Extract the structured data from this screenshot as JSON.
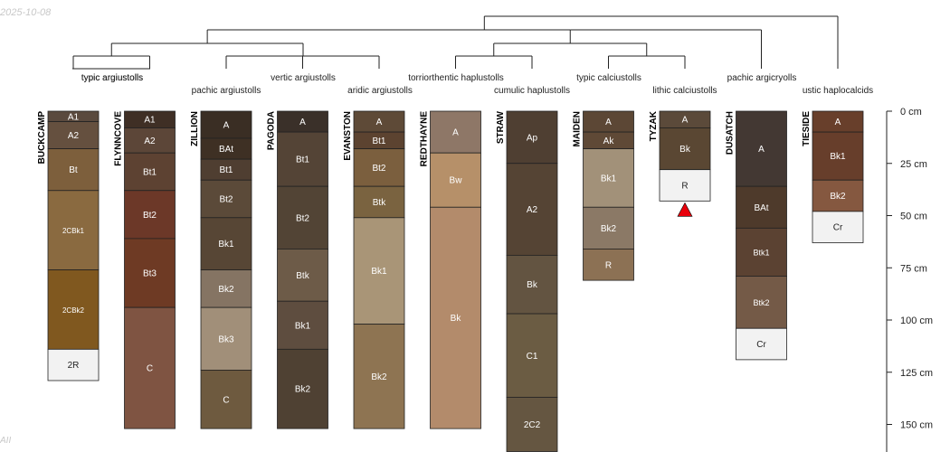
{
  "figure": {
    "date_stamp": "2025-10-08",
    "corner_note": "AII",
    "depth_unit": "cm",
    "depth_max": 160
  },
  "colors": {
    "line": "#222222",
    "label_light": "#ffffff",
    "label_dark": "#222222",
    "marker": "#e8000b"
  },
  "depth_axis": {
    "ticks": [
      {
        "depth": 0,
        "label": "0 cm"
      },
      {
        "depth": 25,
        "label": "25 cm"
      },
      {
        "depth": 50,
        "label": "50 cm"
      },
      {
        "depth": 75,
        "label": "75 cm"
      },
      {
        "depth": 100,
        "label": "100 cm"
      },
      {
        "depth": 125,
        "label": "125 cm"
      },
      {
        "depth": 150,
        "label": "150 cm"
      }
    ]
  },
  "profiles": [
    {
      "name": "BUCKCAMP",
      "taxon": "typic argiustolls",
      "horizons": [
        {
          "label": "A1",
          "top": 0,
          "bottom": 5,
          "color": "#5a4a3e"
        },
        {
          "label": "A2",
          "top": 5,
          "bottom": 18,
          "color": "#65503f"
        },
        {
          "label": "Bt",
          "top": 18,
          "bottom": 38,
          "color": "#7d5f3c"
        },
        {
          "label": "2CBk1",
          "top": 38,
          "bottom": 76,
          "color": "#8a6a40"
        },
        {
          "label": "2CBk2",
          "top": 76,
          "bottom": 114,
          "color": "#80581f"
        },
        {
          "label": "2R",
          "top": 114,
          "bottom": 129,
          "color": "#f2f2f2"
        }
      ]
    },
    {
      "name": "FLYNNCOVE",
      "taxon": "typic argiustolls",
      "horizons": [
        {
          "label": "A1",
          "top": 0,
          "bottom": 8,
          "color": "#3f2f25"
        },
        {
          "label": "A2",
          "top": 8,
          "bottom": 20,
          "color": "#5c4638"
        },
        {
          "label": "Bt1",
          "top": 20,
          "bottom": 38,
          "color": "#5d4232"
        },
        {
          "label": "Bt2",
          "top": 38,
          "bottom": 61,
          "color": "#6c3828"
        },
        {
          "label": "Bt3",
          "top": 61,
          "bottom": 94,
          "color": "#6e3a24"
        },
        {
          "label": "C",
          "top": 94,
          "bottom": 152,
          "color": "#7f5442"
        }
      ]
    },
    {
      "name": "ZILLION",
      "taxon": "pachic argiustolls",
      "horizons": [
        {
          "label": "A",
          "top": 0,
          "bottom": 13,
          "color": "#3a2e24"
        },
        {
          "label": "BAt",
          "top": 13,
          "bottom": 23,
          "color": "#3e3024"
        },
        {
          "label": "Bt1",
          "top": 23,
          "bottom": 33,
          "color": "#4f3e31"
        },
        {
          "label": "Bt2",
          "top": 33,
          "bottom": 51,
          "color": "#5b4a39"
        },
        {
          "label": "Bk1",
          "top": 51,
          "bottom": 76,
          "color": "#574635"
        },
        {
          "label": "Bk2",
          "top": 76,
          "bottom": 94,
          "color": "#857463"
        },
        {
          "label": "Bk3",
          "top": 94,
          "bottom": 124,
          "color": "#a18f79"
        },
        {
          "label": "C",
          "top": 124,
          "bottom": 152,
          "color": "#6e5a3f"
        }
      ]
    },
    {
      "name": "PAGODA",
      "taxon": "vertic argiustolls",
      "horizons": [
        {
          "label": "A",
          "top": 0,
          "bottom": 10,
          "color": "#3a3029"
        },
        {
          "label": "Bt1",
          "top": 10,
          "bottom": 36,
          "color": "#544436"
        },
        {
          "label": "Bt2",
          "top": 36,
          "bottom": 66,
          "color": "#524435"
        },
        {
          "label": "Btk",
          "top": 66,
          "bottom": 91,
          "color": "#6d5b48"
        },
        {
          "label": "Bk1",
          "top": 91,
          "bottom": 114,
          "color": "#5e4d3f"
        },
        {
          "label": "Bk2",
          "top": 114,
          "bottom": 152,
          "color": "#4f4133"
        }
      ]
    },
    {
      "name": "EVANSTON",
      "taxon": "aridic argiustolls",
      "horizons": [
        {
          "label": "A",
          "top": 0,
          "bottom": 10,
          "color": "#5e4a37"
        },
        {
          "label": "Bt1",
          "top": 10,
          "bottom": 18,
          "color": "#5c4330"
        },
        {
          "label": "Bt2",
          "top": 18,
          "bottom": 36,
          "color": "#7b5f3e"
        },
        {
          "label": "Btk",
          "top": 36,
          "bottom": 51,
          "color": "#7a6340"
        },
        {
          "label": "Bk1",
          "top": 51,
          "bottom": 102,
          "color": "#a99577"
        },
        {
          "label": "Bk2",
          "top": 102,
          "bottom": 152,
          "color": "#8e7452"
        }
      ]
    },
    {
      "name": "REDTHAYNE",
      "taxon": "torriorthentic haplustolls",
      "horizons": [
        {
          "label": "A",
          "top": 0,
          "bottom": 20,
          "color": "#8e7767"
        },
        {
          "label": "Bw",
          "top": 20,
          "bottom": 46,
          "color": "#b69069"
        },
        {
          "label": "Bk",
          "top": 46,
          "bottom": 152,
          "color": "#b38b6b"
        }
      ]
    },
    {
      "name": "STRAW",
      "taxon": "cumulic haplustolls",
      "horizons": [
        {
          "label": "Ap",
          "top": 0,
          "bottom": 25,
          "color": "#4f3f32"
        },
        {
          "label": "A2",
          "top": 25,
          "bottom": 69,
          "color": "#554434"
        },
        {
          "label": "Bk",
          "top": 69,
          "bottom": 97,
          "color": "#635441"
        },
        {
          "label": "C1",
          "top": 97,
          "bottom": 137,
          "color": "#6b5c43"
        },
        {
          "label": "2C2",
          "top": 137,
          "bottom": 163,
          "color": "#655641"
        }
      ]
    },
    {
      "name": "MAIDEN",
      "taxon": "typic calciustolls",
      "horizons": [
        {
          "label": "A",
          "top": 0,
          "bottom": 10,
          "color": "#5c4735"
        },
        {
          "label": "Ak",
          "top": 10,
          "bottom": 18,
          "color": "#5f4936"
        },
        {
          "label": "Bk1",
          "top": 18,
          "bottom": 46,
          "color": "#a29179"
        },
        {
          "label": "Bk2",
          "top": 46,
          "bottom": 66,
          "color": "#8b7966"
        },
        {
          "label": "R",
          "top": 66,
          "bottom": 81,
          "color": "#8c7154"
        }
      ]
    },
    {
      "name": "TYZAK",
      "taxon": "lithic calciustolls",
      "marker": true,
      "horizons": [
        {
          "label": "A",
          "top": 0,
          "bottom": 8,
          "color": "#5b4a3a"
        },
        {
          "label": "Bk",
          "top": 8,
          "bottom": 28,
          "color": "#5a4733"
        },
        {
          "label": "R",
          "top": 28,
          "bottom": 43,
          "color": "#f2f2f2"
        }
      ]
    },
    {
      "name": "DUSATCH",
      "taxon": "pachic argicryolls",
      "horizons": [
        {
          "label": "A",
          "top": 0,
          "bottom": 36,
          "color": "#433833"
        },
        {
          "label": "BAt",
          "top": 36,
          "bottom": 56,
          "color": "#4e3a2b"
        },
        {
          "label": "Btk1",
          "top": 56,
          "bottom": 79,
          "color": "#5b4232"
        },
        {
          "label": "Btk2",
          "top": 79,
          "bottom": 104,
          "color": "#745a47"
        },
        {
          "label": "Cr",
          "top": 104,
          "bottom": 119,
          "color": "#f2f2f2"
        }
      ]
    },
    {
      "name": "TIESIDE",
      "taxon": "ustic haplocalcids",
      "horizons": [
        {
          "label": "A",
          "top": 0,
          "bottom": 10,
          "color": "#683f2b"
        },
        {
          "label": "Bk1",
          "top": 10,
          "bottom": 33,
          "color": "#673e2b"
        },
        {
          "label": "Bk2",
          "top": 33,
          "bottom": 48,
          "color": "#855840"
        },
        {
          "label": "Cr",
          "top": 48,
          "bottom": 63,
          "color": "#f2f2f2"
        }
      ]
    }
  ]
}
